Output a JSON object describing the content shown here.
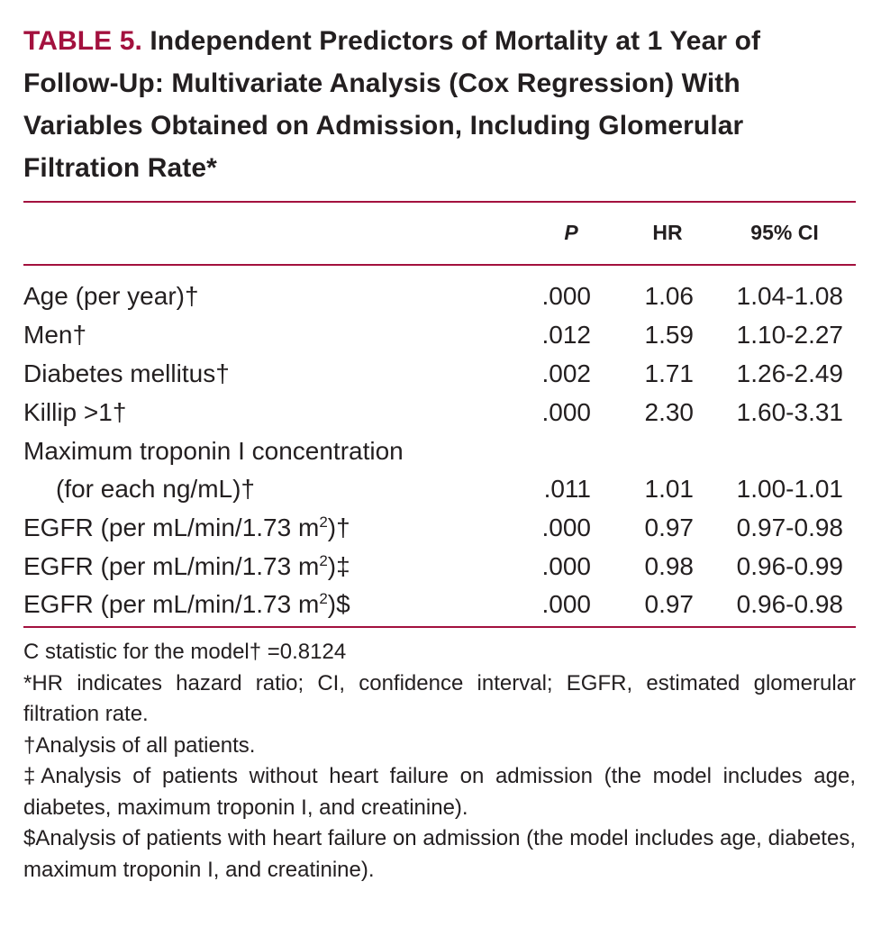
{
  "title": {
    "label": "TABLE 5.",
    "text": "Independent Predictors of Mortality at 1 Year of Follow-Up: Multivariate Analysis (Cox Regression) With Variables Obtained on Admission, Including Glomerular Filtration Rate*"
  },
  "columns": {
    "p": "P",
    "hr": "HR",
    "ci": "95% CI"
  },
  "rows": [
    {
      "label": "Age (per year)†",
      "p": ".000",
      "hr": "1.06",
      "ci": "1.04-1.08"
    },
    {
      "label": "Men†",
      "p": ".012",
      "hr": "1.59",
      "ci": "1.10-2.27"
    },
    {
      "label": "Diabetes mellitus†",
      "p": ".002",
      "hr": "1.71",
      "ci": "1.26-2.49"
    },
    {
      "label": "Killip >1†",
      "p": ".000",
      "hr": "2.30",
      "ci": "1.60-3.31"
    },
    {
      "label": "Maximum troponin I concentration",
      "label_cont": "(for each ng/mL)†",
      "p": ".011",
      "hr": "1.01",
      "ci": "1.00-1.01"
    },
    {
      "label_pre": "EGFR (per mL/min/1.73 m",
      "label_sup": "2",
      "label_post": ")†",
      "p": ".000",
      "hr": "0.97",
      "ci": "0.97-0.98"
    },
    {
      "label_pre": "EGFR (per mL/min/1.73 m",
      "label_sup": "2",
      "label_post": ")‡",
      "p": ".000",
      "hr": "0.98",
      "ci": "0.96-0.99"
    },
    {
      "label_pre": "EGFR (per mL/min/1.73 m",
      "label_sup": "2",
      "label_post": ")$",
      "p": ".000",
      "hr": "0.97",
      "ci": "0.96-0.98"
    }
  ],
  "notes": [
    "C statistic for the model† =0.8124",
    "*HR indicates hazard ratio; CI, confidence interval; EGFR, estimated glomerular filtration rate.",
    "†Analysis of all patients.",
    "‡Analysis of patients without heart failure on admission (the model includes age, diabetes, maximum troponin I, and creatinine).",
    "$Analysis of patients with heart failure on admission (the model includes age, diabetes, maximum troponin I, and creatinine)."
  ],
  "colors": {
    "accent": "#a3113e",
    "text": "#231f20"
  }
}
